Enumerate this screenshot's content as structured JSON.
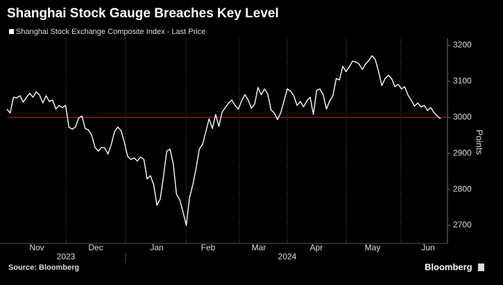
{
  "chart_data": {
    "type": "line",
    "title": "Shanghai Stock Gauge Breaches Key Level",
    "y_label": "Points",
    "source": "Source: Bloomberg",
    "brand": "Bloomberg",
    "month_labels": [
      "Nov",
      "Dec",
      "Jan",
      "Feb",
      "Mar",
      "Apr",
      "May",
      "Jun"
    ],
    "year_labels": [
      "2023",
      "2024"
    ],
    "ylim": [
      2650,
      3220
    ],
    "yticks": [
      2700,
      2800,
      2900,
      3000,
      3100,
      3200
    ],
    "reference_line": {
      "value": 3000,
      "color": "#c0272d"
    },
    "series": [
      {
        "name": "Shanghai Stock Exchange Composite Index - Last Price",
        "color": "#ffffff",
        "values": [
          3023,
          3012,
          3056,
          3054,
          3060,
          3042,
          3056,
          3067,
          3056,
          3071,
          3062,
          3040,
          3060,
          3044,
          3048,
          3023,
          3033,
          3027,
          3033,
          2973,
          2967,
          2973,
          2998,
          3004,
          2969,
          2965,
          2950,
          2917,
          2906,
          2917,
          2915,
          2898,
          2925,
          2960,
          2973,
          2963,
          2931,
          2892,
          2883,
          2887,
          2879,
          2890,
          2883,
          2829,
          2838,
          2813,
          2756,
          2773,
          2835,
          2906,
          2912,
          2871,
          2787,
          2771,
          2737,
          2700,
          2777,
          2813,
          2858,
          2912,
          2925,
          2960,
          2996,
          2969,
          3008,
          2975,
          3015,
          3027,
          3040,
          3048,
          3033,
          3023,
          3046,
          3063,
          3048,
          3025,
          3037,
          3083,
          3063,
          3079,
          3065,
          3021,
          3012,
          2994,
          3013,
          3046,
          3079,
          3073,
          3060,
          3033,
          3044,
          3029,
          3046,
          3056,
          3008,
          3075,
          3079,
          3063,
          3023,
          3046,
          3060,
          3108,
          3104,
          3142,
          3127,
          3140,
          3156,
          3154,
          3148,
          3133,
          3148,
          3158,
          3171,
          3160,
          3127,
          3088,
          3108,
          3117,
          3108,
          3085,
          3092,
          3079,
          3085,
          3062,
          3048,
          3031,
          3040,
          3029,
          3033,
          3019,
          3027,
          3013,
          3004,
          2996
        ]
      }
    ]
  }
}
